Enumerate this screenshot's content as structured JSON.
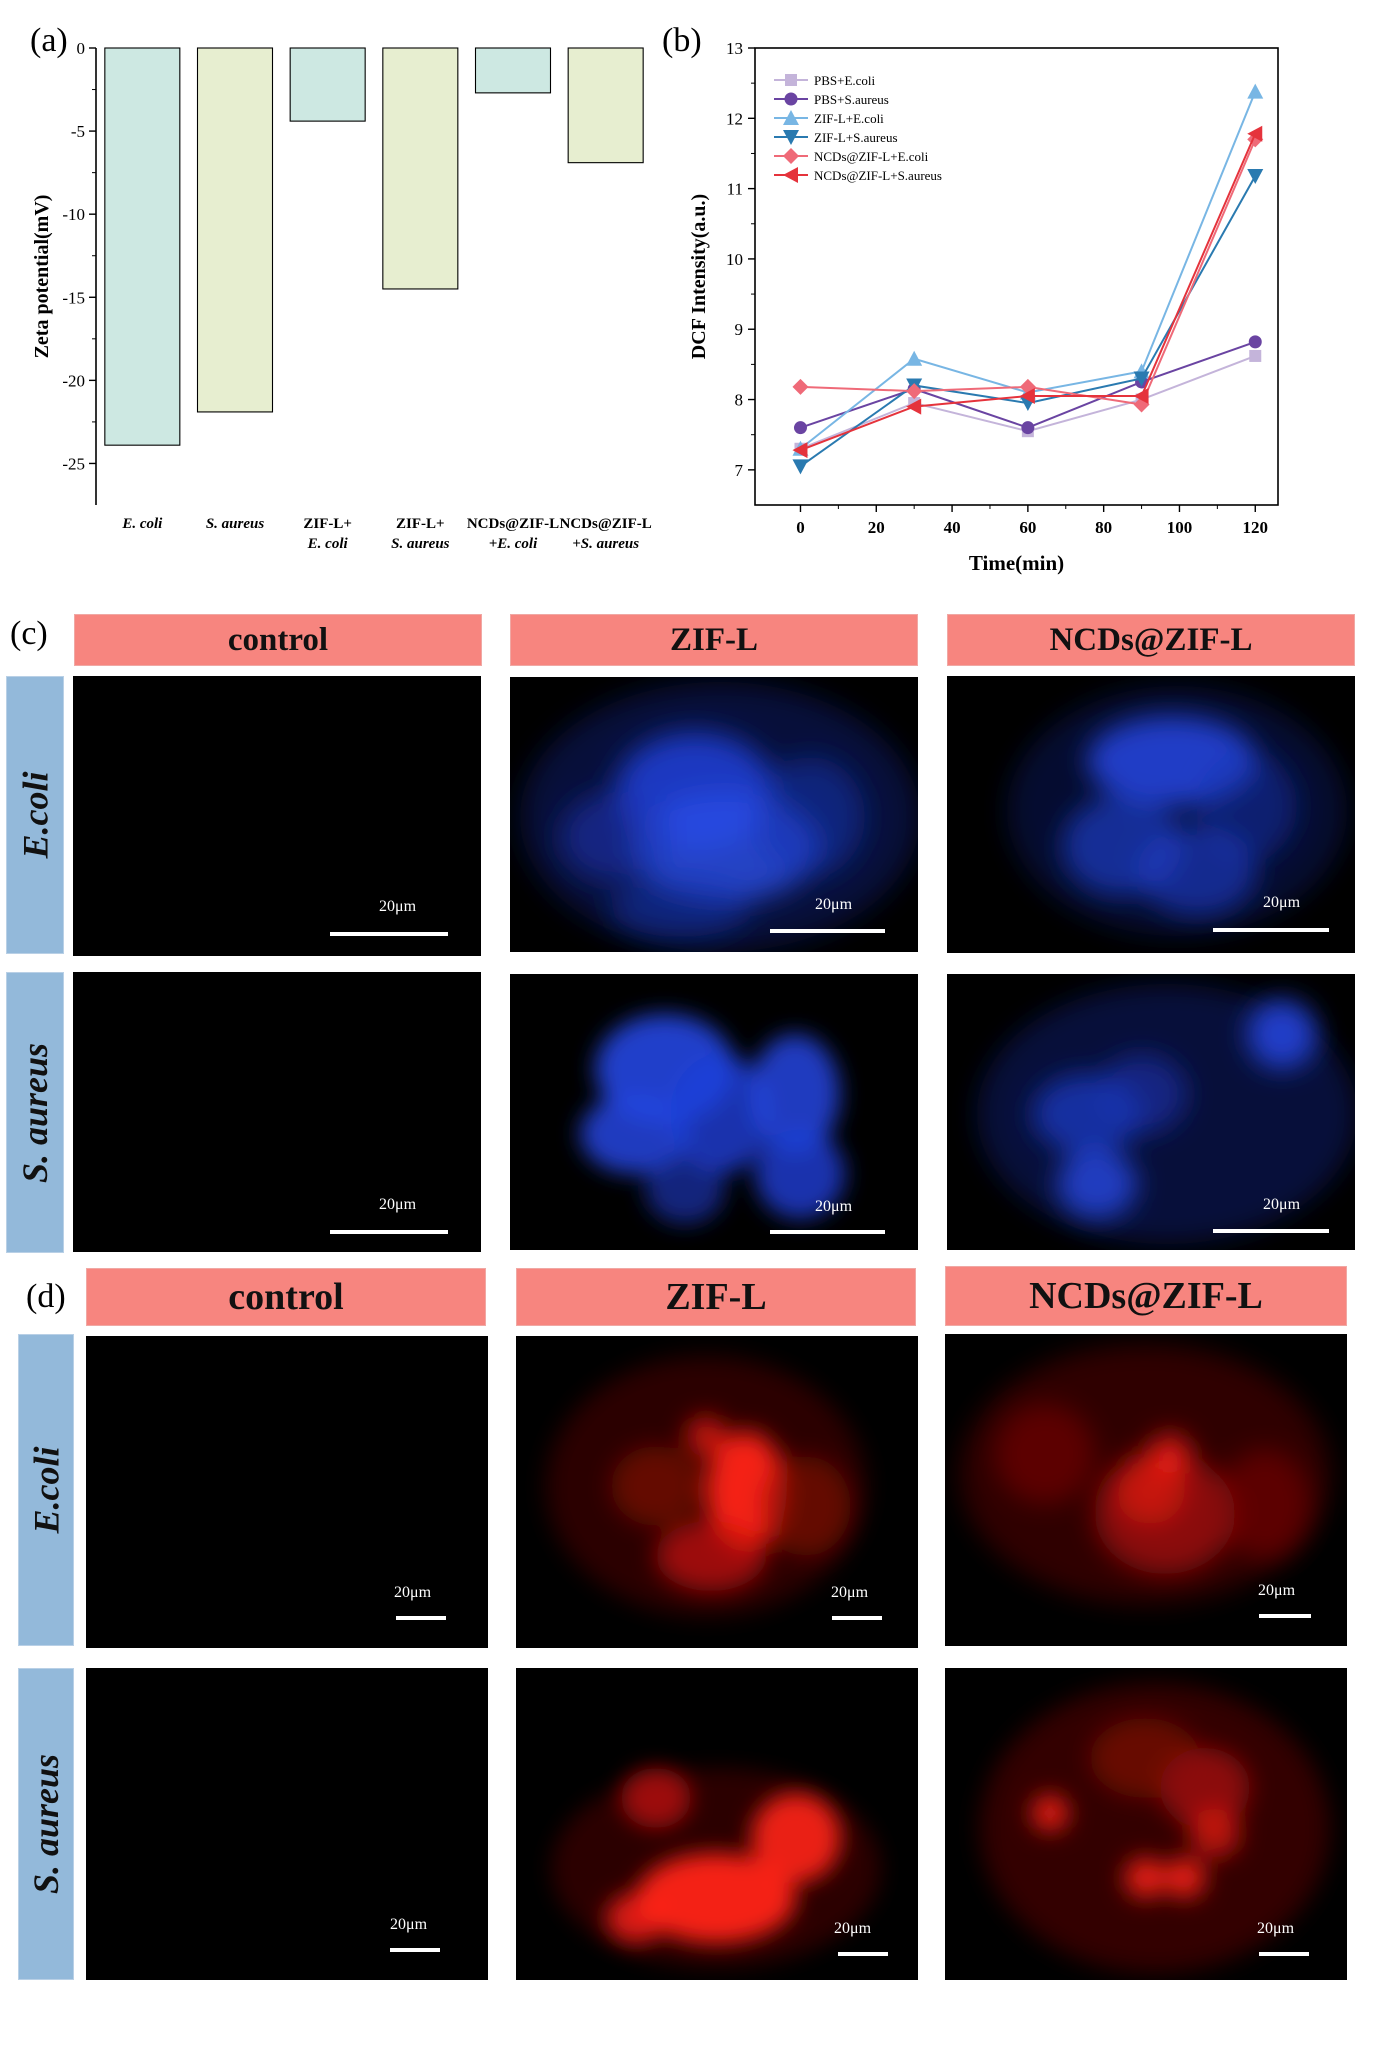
{
  "panel_labels": {
    "a": "(a)",
    "b": "(b)",
    "c": "(c)",
    "d": "(d)"
  },
  "chart_data": [
    {
      "type": "bar",
      "panel": "(a)",
      "ylabel": "Zeta potential(mV)",
      "ylim": [
        -27.5,
        0
      ],
      "yticks": [
        0,
        -5,
        -10,
        -15,
        -20,
        -25
      ],
      "categories": [
        [
          "E. coli"
        ],
        [
          "S. aureus"
        ],
        [
          "ZIF-L+",
          "E. coli"
        ],
        [
          "ZIF-L+",
          "S. aureus"
        ],
        [
          "NCDs@ZIF-L",
          "+E. coli"
        ],
        [
          "NCDs@ZIF-L",
          "+S. aureus"
        ]
      ],
      "values": [
        -23.9,
        -21.9,
        -4.4,
        -14.5,
        -2.7,
        -6.9
      ],
      "colors": [
        "#cde8e2",
        "#e7eed0",
        "#cde8e2",
        "#e7eed0",
        "#cde8e2",
        "#e7eed0"
      ]
    },
    {
      "type": "line",
      "panel": "(b)",
      "xlabel": "Time(min)",
      "ylabel": "DCF Intensity(a.u.)",
      "xlim": [
        -12,
        126
      ],
      "ylim": [
        6.5,
        13
      ],
      "xticks": [
        0,
        20,
        40,
        60,
        80,
        100,
        120
      ],
      "yticks": [
        7,
        8,
        9,
        10,
        11,
        12,
        13
      ],
      "x": [
        0,
        30,
        60,
        90,
        120
      ],
      "series": [
        {
          "name": "PBS+E.coli",
          "marker": "square",
          "color": "#c4b4da",
          "values": [
            7.3,
            7.95,
            7.55,
            8.0,
            8.62
          ]
        },
        {
          "name": "PBS+S.aureus",
          "marker": "circle",
          "color": "#6a44a2",
          "values": [
            7.6,
            8.15,
            7.6,
            8.25,
            8.82
          ]
        },
        {
          "name": "ZIF-L+E.coli",
          "marker": "triangle-up",
          "color": "#78b6e4",
          "values": [
            7.3,
            8.58,
            8.1,
            8.4,
            12.38
          ]
        },
        {
          "name": "ZIF-L+S.aureus",
          "marker": "triangle-down",
          "color": "#2a7ab0",
          "values": [
            7.05,
            8.2,
            7.95,
            8.3,
            11.18
          ]
        },
        {
          "name": "NCDs@ZIF-L+E.coli",
          "marker": "diamond",
          "color": "#ef6a78",
          "values": [
            8.18,
            8.12,
            8.18,
            7.93,
            11.7
          ]
        },
        {
          "name": "NCDs@ZIF-L+S.aureus",
          "marker": "triangle-left",
          "color": "#e5333c",
          "values": [
            7.28,
            7.9,
            8.05,
            8.05,
            11.78
          ]
        }
      ]
    }
  ],
  "panel_c": {
    "headers": [
      "control",
      "ZIF-L",
      "NCDs@ZIF-L"
    ],
    "rows": [
      "E.coli",
      "S. aureus"
    ],
    "scale_label": "20μm",
    "stain_color": "#1e3fd8"
  },
  "panel_d": {
    "headers": [
      "control",
      "ZIF-L",
      "NCDs@ZIF-L"
    ],
    "rows": [
      "E.coli",
      "S. aureus"
    ],
    "scale_label": "20μm",
    "stain_color": "#ff1a12"
  }
}
